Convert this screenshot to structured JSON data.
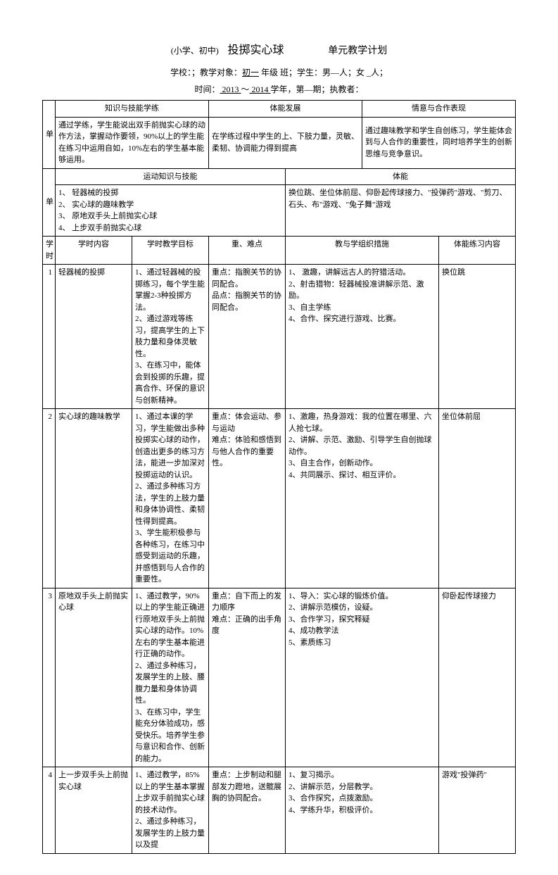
{
  "header": {
    "title_prefix": "(小学、初中)",
    "title_main": "投掷实心球",
    "title_suffix": "单元教学计划",
    "meta1_pre": "学校：；教学对象：",
    "meta1_grade": "初一",
    "meta1_post": " 年级  班；学生：男—人；女 _人；",
    "meta2_pre": "时间：",
    "meta2_y1": "    2013         ",
    "meta2_mid": "～",
    "meta2_y2": "     2014 ",
    "meta2_post": "学年，第—期；执教者："
  },
  "section1": {
    "rowhead": "单",
    "h1": "知识与技能学练",
    "h2": "体能发展",
    "h3": "情意与合作表现",
    "c1": "通过学练，学生能说出双手前抛实心球的动作方法，掌握动作要领，90%以上的学生能在练习中运用自如，10%左右的学生基本能够运用。",
    "c2": "在学练过程中学生的上、下肢力量，灵敏、柔韧、协调能力得到提高",
    "c3": "通过趣味教学和学生自创练习，学生能体会到与人合作的重要性，同时培养学生的创新思维与竞争意识。"
  },
  "section2": {
    "rowhead": "单",
    "h1": "运动知识与技能",
    "h2": "体能",
    "c1": "1、  轻器械的投掷\n2、 实心球的趣味教学\n3、 原地双手头上前抛实心球\n4、 上步双手前抛实心球",
    "c2": "换位跳、坐位体前屈、仰卧起传球接力、\"投弹药\"游戏、\"剪刀、石头、布\"游戏、\"兔子舞\"游戏"
  },
  "tablehead": {
    "rowhead": "学时",
    "h1": "学时内容",
    "h2": "学时教学目标",
    "h3": "重、难点",
    "h4": "教与学组织措施",
    "h5": "体能练习内容"
  },
  "rows": [
    {
      "num": "1",
      "content": "轻器械的投掷",
      "goal": "1、通过轻器械的投掷练习，每个学生能掌握2-3种投掷方法。\n2、通过游戏等练习，提高学生的上下肢力量和身体灵敏性。\n3、在练习中，能体会到投掷的乐趣，提高合作、环保的意识与创新精神。",
      "key": "重点：指腕关节的协同配合。\n品点：指腕关节的协同配合。",
      "method": "1、      激趣，讲解远古人的狩猎活动。\n2、射击猎物：轻器械投准讲解示范、激励。\n3、自主学练\n4、合作、探究进行游戏、比赛。",
      "fit": "换位跳"
    },
    {
      "num": "2",
      "content": "实心球的趣味教学",
      "goal": "1、通过本课的学习，学生能做出多种投掷实心球的动作，创造出更多的练习方法，能进一步加深对投掷运动的认识。\n2、通过多种练习方法，学生的上肢力量和身体协调性、柔韧性得到提高。\n3、学生能积极参与各种练习，在练习中感受到运动的乐趣，并感悟到与人合作的重要性。",
      "key": "重点：体会运动、参与运动\n难点：体验和感悟到与他人合作的重要性。",
      "method": "1、激趣，热身游戏：我的位置在哪里、六人抢七球。\n2、讲解、示范、激励、引导学生自创抛球动作。\n3、自主合作，创新动作。\n4、共同展示、探讨、相互评价。",
      "fit": "坐位体前屈"
    },
    {
      "num": "3",
      "content": "原地双手头上前抛实心球",
      "goal": "1、通过教学，90%以上的学生能正确进行原地双手头上前抛实心球的动作。10%左右的学生基本能进行正确的动作。\n2、通过多种练习，发展学生的上肢、腰腹力量和身体协调性。\n3、在练习中，学生能充分体验成功，感受快乐。培养学生参与意识和合作、创新的能力。",
      "key": "重点：自下而上的发力顺序\n难点：正确的出手角度",
      "method": "1、导入：实心球的锻炼价值。\n2、讲解示范模仿，设疑。\n3、合作学习，探究释疑\n4、成功教学法\n5、素质练习",
      "fit": "仰卧起传球接力"
    },
    {
      "num": "4",
      "content": "上一步双手头上前抛实心球",
      "goal": "1、通过教学，85%以上的学生基本掌握上步双手前抛实心球的技术动作。\n2、通过多种练习，发展学生的上肢力量以及提",
      "key": "重点：上步制动和腿部发力蹬地，送髋展胸的协同配合。",
      "method": "1、复习揭示。\n2、讲解示范，分层教学。\n3、合作探究，点拨激励。\n4、学练升华，积极评价。",
      "fit": "游戏\"投弹药\""
    }
  ]
}
